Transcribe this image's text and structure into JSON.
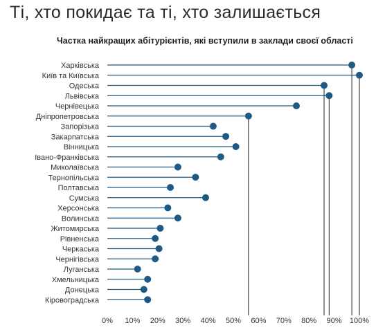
{
  "headline": "Ті, хто покидає та ті, хто залишається",
  "chart_data": {
    "type": "lollipop",
    "title": "Частка найкращих абітурієнтів, які вступили в заклади своєї області",
    "xlabel": "",
    "ylabel": "",
    "xlim": [
      0,
      100
    ],
    "x_ticks": [
      "0%",
      "10%",
      "20%",
      "30%",
      "40%",
      "50%",
      "60%",
      "70%",
      "80%",
      "90%",
      "100%"
    ],
    "categories": [
      "Харківська",
      "Київ та Київська",
      "Одеська",
      "Львівська",
      "Чернівецька",
      "Дніпропетровська",
      "Запорізька",
      "Закарпатська",
      "Вінницька",
      "Івано-Франківська",
      "Миколаївська",
      "Тернопільська",
      "Полтавська",
      "Сумська",
      "Херсонська",
      "Волинська",
      "Житомирська",
      "Рівненська",
      "Черкаська",
      "Чернігівська",
      "Луганська",
      "Хмельницька",
      "Донецька",
      "Кіровоградська"
    ],
    "values": [
      97,
      100,
      86,
      88,
      75,
      56,
      42,
      47,
      51,
      45,
      28,
      35,
      25,
      39,
      24,
      28,
      21,
      19,
      20.5,
      19,
      12,
      16,
      14.5,
      16
    ],
    "marker_color": "#1f5a85",
    "line_color": "#1f5a85",
    "droplines_at": [
      "Харківська",
      "Київ та Київська",
      "Одеська",
      "Львівська",
      "Дніпропетровська"
    ],
    "grid": false
  }
}
